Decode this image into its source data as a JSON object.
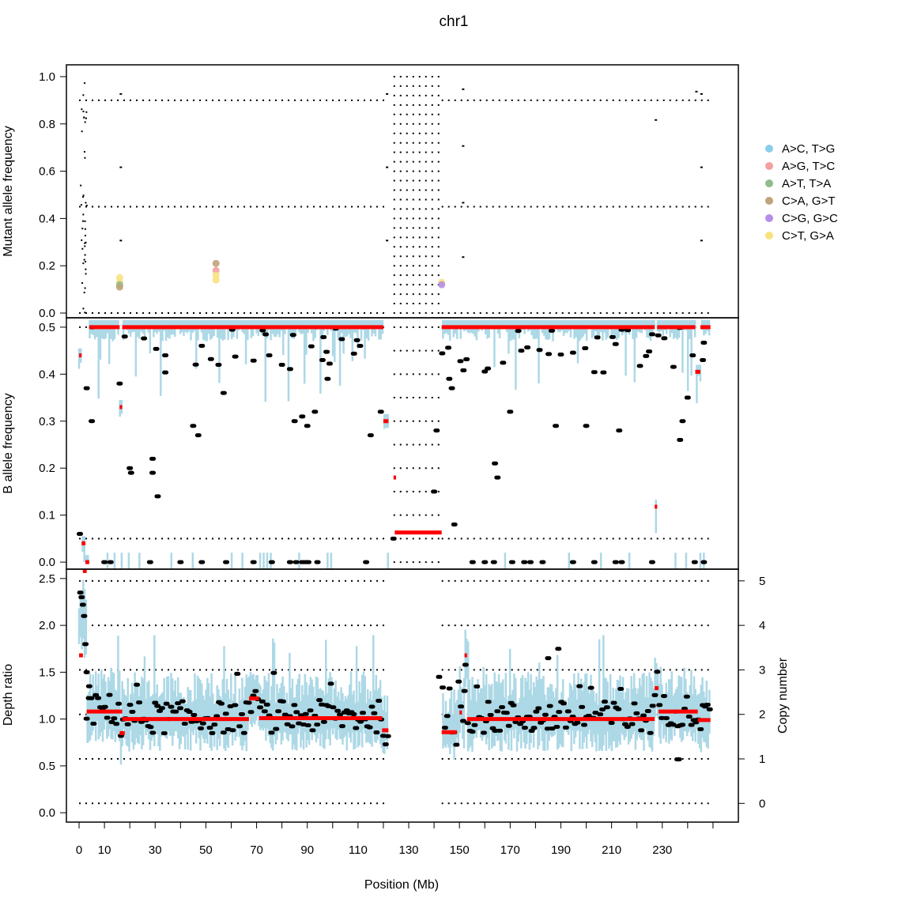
{
  "chart_data": {
    "type": "scatter",
    "title": "chr1",
    "xlabel": "Position (Mb)",
    "x_ticks": [
      0,
      10,
      30,
      50,
      70,
      90,
      110,
      130,
      150,
      170,
      190,
      210,
      230
    ],
    "xlim": [
      -5,
      260
    ],
    "colors": {
      "cn_segment": "#ff0000",
      "snp_band": "#add8e6",
      "snp_dot": "#000000"
    },
    "panels": [
      {
        "name": "mutation",
        "ylabel": "Mutant allele frequency",
        "ylim": [
          -0.02,
          1.05
        ],
        "y_ticks": [
          0.0,
          0.2,
          0.4,
          0.6,
          0.8,
          1.0
        ],
        "dotted_levels": [
          0.0,
          0.45,
          0.9
        ],
        "centromere_levels": [
          1.0,
          0.96,
          0.92,
          0.88,
          0.84,
          0.8,
          0.76,
          0.72,
          0.68,
          0.64,
          0.6,
          0.56,
          0.52,
          0.48,
          0.44,
          0.4,
          0.36,
          0.32,
          0.28,
          0.24,
          0.2,
          0.16,
          0.12,
          0.08,
          0.04,
          0.0
        ],
        "legend": [
          {
            "label": "A>C, T>G",
            "color": "#87ceeb"
          },
          {
            "label": "A>G, T>C",
            "color": "#f4a0a0"
          },
          {
            "label": "A>T, T>A",
            "color": "#8fbc8f"
          },
          {
            "label": "C>A, G>T",
            "color": "#bfa37a"
          },
          {
            "label": "C>G, G>C",
            "color": "#b58ee6"
          },
          {
            "label": "C>T, G>A",
            "color": "#f7e27f"
          }
        ],
        "points": [
          {
            "x": 16.0,
            "y": 0.15,
            "type": "C>T, G>A"
          },
          {
            "x": 16.0,
            "y": 0.13,
            "type": "C>T, G>A"
          },
          {
            "x": 16.0,
            "y": 0.12,
            "type": "A>T, T>A"
          },
          {
            "x": 16.0,
            "y": 0.11,
            "type": "C>A, G>T"
          },
          {
            "x": 54.0,
            "y": 0.21,
            "type": "C>A, G>T"
          },
          {
            "x": 54.0,
            "y": 0.18,
            "type": "A>G, T>C"
          },
          {
            "x": 54.0,
            "y": 0.16,
            "type": "C>T, G>A"
          },
          {
            "x": 54.0,
            "y": 0.14,
            "type": "C>T, G>A"
          },
          {
            "x": 143.0,
            "y": 0.13,
            "type": "C>T, G>A"
          },
          {
            "x": 143.0,
            "y": 0.12,
            "type": "C>G, G>C"
          }
        ]
      },
      {
        "name": "baf",
        "ylabel": "B allele frequency",
        "ylim": [
          -0.015,
          0.52
        ],
        "y_ticks": [
          0.0,
          0.1,
          0.2,
          0.3,
          0.4,
          0.5
        ],
        "dotted_levels": [
          0.05,
          0.5
        ],
        "segments": [
          {
            "start": 0.0,
            "end": 1.0,
            "value": 0.44
          },
          {
            "start": 1.0,
            "end": 2.5,
            "value": 0.04
          },
          {
            "start": 2.5,
            "end": 4.0,
            "value": 0.0
          },
          {
            "start": 4.0,
            "end": 16.0,
            "value": 0.5
          },
          {
            "start": 16.0,
            "end": 17.0,
            "value": 0.33
          },
          {
            "start": 17.0,
            "end": 120.0,
            "value": 0.5
          },
          {
            "start": 120.0,
            "end": 122.0,
            "value": 0.3
          },
          {
            "start": 124.0,
            "end": 125.0,
            "value": 0.18
          },
          {
            "start": 124.5,
            "end": 143.0,
            "value": 0.063
          },
          {
            "start": 143.0,
            "end": 227.0,
            "value": 0.5
          },
          {
            "start": 227.0,
            "end": 228.0,
            "value": 0.118
          },
          {
            "start": 228.0,
            "end": 243.0,
            "value": 0.5
          },
          {
            "start": 243.0,
            "end": 245.0,
            "value": 0.405
          },
          {
            "start": 245.0,
            "end": 249.0,
            "value": 0.5
          }
        ]
      },
      {
        "name": "depth",
        "ylabel": "Depth ratio",
        "ylabel_right": "Copy number",
        "ylim": [
          -0.1,
          2.6
        ],
        "y_ticks": [
          0.0,
          0.5,
          1.0,
          1.5,
          2.0,
          2.5
        ],
        "copy_number_ticks": [
          0,
          1,
          2,
          3,
          4,
          5
        ],
        "copy_number_depth": [
          0.1,
          0.575,
          1.05,
          1.525,
          2.0,
          2.475
        ],
        "segments": [
          {
            "start": 0.0,
            "end": 1.5,
            "value": 1.68
          },
          {
            "start": 1.5,
            "end": 3.0,
            "value": 2.58
          },
          {
            "start": 3.0,
            "end": 17.0,
            "value": 1.08
          },
          {
            "start": 16.0,
            "end": 18.0,
            "value": 0.85
          },
          {
            "start": 17.0,
            "end": 67.0,
            "value": 1.0
          },
          {
            "start": 67.0,
            "end": 71.0,
            "value": 1.22
          },
          {
            "start": 71.0,
            "end": 119.5,
            "value": 1.01
          },
          {
            "start": 119.5,
            "end": 122.0,
            "value": 0.88
          },
          {
            "start": 143.0,
            "end": 149.0,
            "value": 0.86
          },
          {
            "start": 150.0,
            "end": 151.0,
            "value": 1.07
          },
          {
            "start": 152.0,
            "end": 153.0,
            "value": 1.68
          },
          {
            "start": 153.0,
            "end": 227.0,
            "value": 1.0
          },
          {
            "start": 227.0,
            "end": 228.5,
            "value": 1.33
          },
          {
            "start": 228.5,
            "end": 244.0,
            "value": 1.08
          },
          {
            "start": 244.0,
            "end": 249.0,
            "value": 0.99
          }
        ]
      }
    ]
  }
}
